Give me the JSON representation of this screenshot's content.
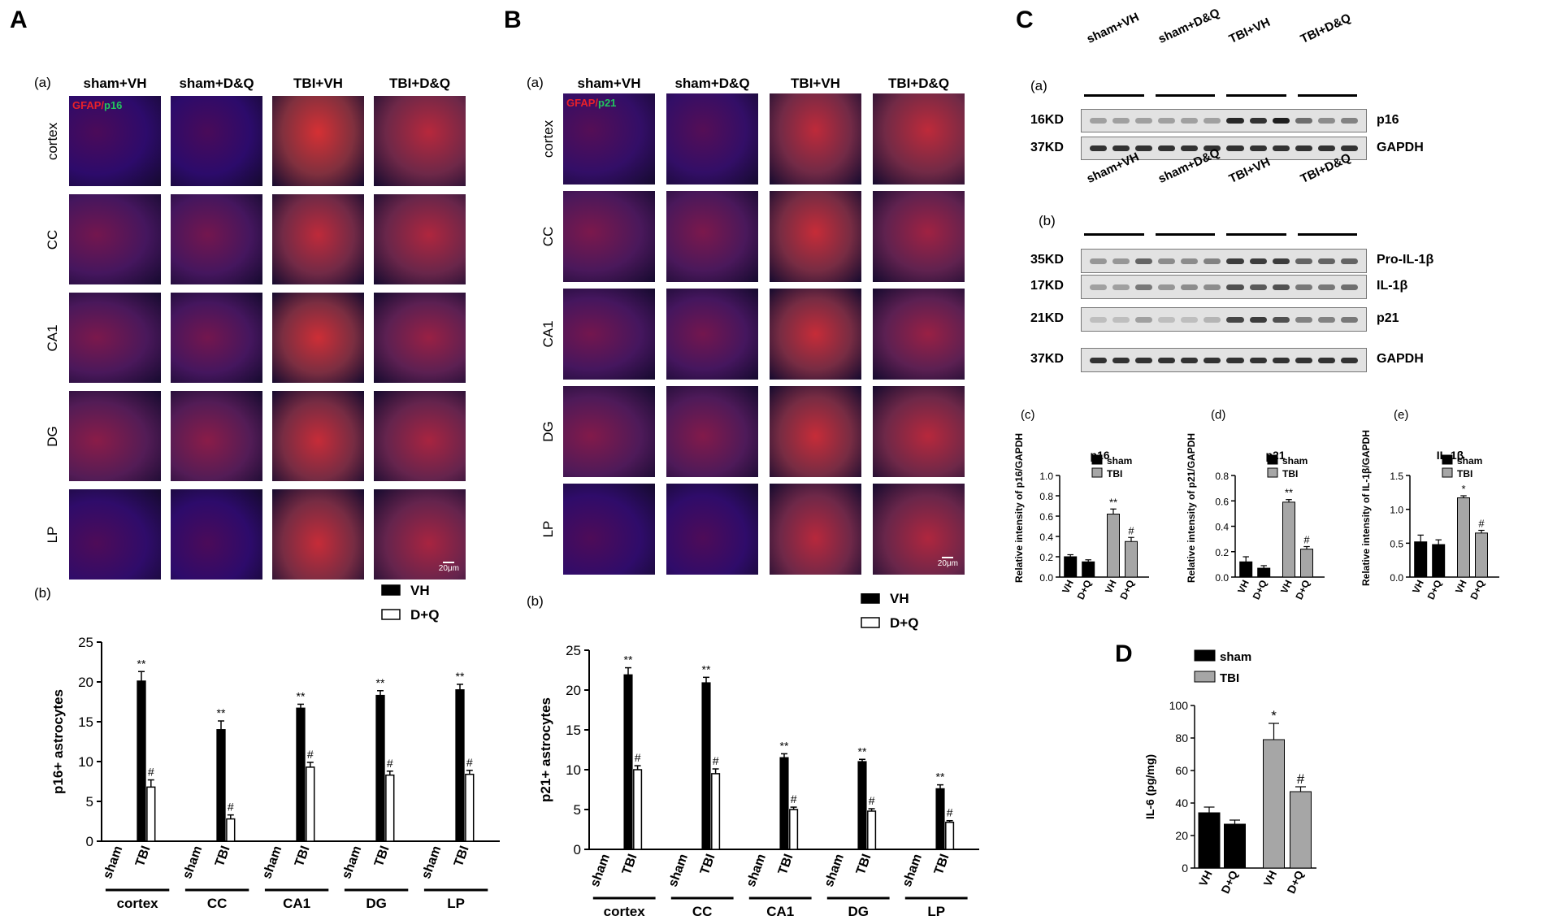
{
  "panelA": {
    "letter": "A",
    "sub_a": "(a)",
    "sub_b": "(b)",
    "col_headers": [
      "sham+VH",
      "sham+D&Q",
      "TBI+VH",
      "TBI+D&Q"
    ],
    "row_labels": [
      "cortex",
      "CC",
      "CA1",
      "DG",
      "LP"
    ],
    "stain_red": "GFAP/",
    "stain_green": "p16",
    "scale_bar": "20μm",
    "intensity": [
      [
        0.03,
        0.02,
        0.95,
        0.75
      ],
      [
        0.3,
        0.3,
        0.8,
        0.7
      ],
      [
        0.35,
        0.3,
        0.9,
        0.55
      ],
      [
        0.45,
        0.45,
        0.85,
        0.65
      ],
      [
        0.05,
        0.03,
        0.85,
        0.65
      ]
    ]
  },
  "panelB": {
    "letter": "B",
    "sub_a": "(a)",
    "sub_b": "(b)",
    "col_headers": [
      "sham+VH",
      "sham+D&Q",
      "TBI+VH",
      "TBI+D&Q"
    ],
    "row_labels": [
      "cortex",
      "CC",
      "CA1",
      "DG",
      "LP"
    ],
    "stain_red": "GFAP/",
    "stain_green": "p21",
    "scale_bar": "20μm",
    "intensity": [
      [
        0.1,
        0.1,
        0.8,
        0.8
      ],
      [
        0.35,
        0.35,
        0.85,
        0.6
      ],
      [
        0.3,
        0.3,
        0.85,
        0.55
      ],
      [
        0.4,
        0.4,
        0.85,
        0.75
      ],
      [
        0.05,
        0.05,
        0.75,
        0.7
      ]
    ]
  },
  "panelC": {
    "letter": "C",
    "sub_a": "(a)",
    "sub_b": "(b)",
    "groups": [
      "sham+VH",
      "sham+D&Q",
      "TBI+VH",
      "TBI+D&Q"
    ],
    "blot_a": [
      {
        "kd": "16KD",
        "label": "p16",
        "levels": [
          0.3,
          0.3,
          0.3,
          0.3,
          0.3,
          0.3,
          0.9,
          0.85,
          0.95,
          0.55,
          0.4,
          0.45
        ]
      },
      {
        "kd": "37KD",
        "label": "GAPDH",
        "levels": [
          0.85,
          0.85,
          0.85,
          0.85,
          0.85,
          0.85,
          0.85,
          0.85,
          0.85,
          0.85,
          0.85,
          0.85
        ]
      }
    ],
    "blot_b": [
      {
        "kd": "35KD",
        "label": "Pro-IL-1β",
        "levels": [
          0.35,
          0.35,
          0.6,
          0.4,
          0.4,
          0.45,
          0.8,
          0.8,
          0.8,
          0.6,
          0.6,
          0.6
        ]
      },
      {
        "kd": "17KD",
        "label": "IL-1β",
        "levels": [
          0.3,
          0.3,
          0.5,
          0.35,
          0.4,
          0.4,
          0.7,
          0.65,
          0.7,
          0.5,
          0.5,
          0.55
        ]
      },
      {
        "kd": "21KD",
        "label": "p21",
        "levels": [
          0.15,
          0.15,
          0.3,
          0.15,
          0.15,
          0.2,
          0.75,
          0.8,
          0.7,
          0.45,
          0.45,
          0.5
        ]
      },
      {
        "kd": "37KD",
        "label": "GAPDH",
        "levels": [
          0.85,
          0.85,
          0.85,
          0.85,
          0.85,
          0.85,
          0.85,
          0.85,
          0.85,
          0.85,
          0.85,
          0.85
        ]
      }
    ]
  },
  "panelD": {
    "letter": "D"
  },
  "colors": {
    "sham": "#000000",
    "tbi": "#a6a6a6",
    "vh": "#000000",
    "dq": "#ffffff",
    "gfap": "#e8202a",
    "marker": "#22c55e"
  },
  "chart_data": [
    {
      "id": "A_b",
      "type": "bar",
      "sub_label": "(b)",
      "ylabel": "p16+ astrocytes",
      "ylim": [
        0,
        25
      ],
      "yticks": [
        0,
        5,
        10,
        15,
        20,
        25
      ],
      "regions": [
        "cortex",
        "CC",
        "CA1",
        "DG",
        "LP"
      ],
      "x_labels": [
        "sham",
        "TBI"
      ],
      "legend": [
        "VH",
        "D+Q"
      ],
      "legend_position": "top-right",
      "series": [
        {
          "name": "VH",
          "values": [
            20.1,
            14.0,
            16.7,
            18.3,
            19.0
          ],
          "err": [
            1.2,
            1.1,
            0.5,
            0.6,
            0.7
          ],
          "sig": "**"
        },
        {
          "name": "D+Q",
          "values": [
            6.8,
            2.8,
            9.3,
            8.3,
            8.4
          ],
          "err": [
            0.9,
            0.5,
            0.6,
            0.5,
            0.5
          ],
          "sig": "#"
        }
      ]
    },
    {
      "id": "B_b",
      "type": "bar",
      "sub_label": "(b)",
      "ylabel": "p21+ astrocytes",
      "ylim": [
        0,
        25
      ],
      "yticks": [
        0,
        5,
        10,
        15,
        20,
        25
      ],
      "regions": [
        "cortex",
        "CC",
        "CA1",
        "DG",
        "LP"
      ],
      "x_labels": [
        "sham",
        "TBI"
      ],
      "legend": [
        "VH",
        "D+Q"
      ],
      "legend_position": "top-right",
      "series": [
        {
          "name": "VH",
          "values": [
            21.9,
            20.9,
            11.5,
            11.0,
            7.6
          ],
          "err": [
            0.9,
            0.7,
            0.5,
            0.3,
            0.5
          ],
          "sig": "**"
        },
        {
          "name": "D+Q",
          "values": [
            10.0,
            9.5,
            5.0,
            4.8,
            3.4
          ],
          "err": [
            0.5,
            0.6,
            0.3,
            0.3,
            0.2
          ],
          "sig": "#"
        }
      ]
    },
    {
      "id": "C_c",
      "type": "bar",
      "sub_label": "(c)",
      "title": "p16",
      "ylabel": "Relative intensity of p16/GAPDH",
      "ylim": [
        0,
        1.0
      ],
      "yticks": [
        0.0,
        0.2,
        0.4,
        0.6,
        0.8,
        1.0
      ],
      "categories": [
        "VH",
        "D+Q",
        "VH",
        "D+Q"
      ],
      "groups": [
        "sham",
        "sham",
        "TBI",
        "TBI"
      ],
      "values": [
        0.2,
        0.15,
        0.62,
        0.35
      ],
      "err": [
        0.02,
        0.02,
        0.05,
        0.04
      ],
      "sig": [
        "",
        "",
        "**",
        "#"
      ],
      "legend": [
        "sham",
        "TBI"
      ],
      "legend_position": "top-right"
    },
    {
      "id": "C_d",
      "type": "bar",
      "sub_label": "(d)",
      "title": "p21",
      "ylabel": "Relative intensity of p21/GAPDH",
      "ylim": [
        0,
        0.8
      ],
      "yticks": [
        0.0,
        0.2,
        0.4,
        0.6,
        0.8
      ],
      "categories": [
        "VH",
        "D+Q",
        "VH",
        "D+Q"
      ],
      "groups": [
        "sham",
        "sham",
        "TBI",
        "TBI"
      ],
      "values": [
        0.12,
        0.07,
        0.59,
        0.22
      ],
      "err": [
        0.04,
        0.02,
        0.02,
        0.02
      ],
      "sig": [
        "",
        "",
        "**",
        "#"
      ],
      "legend": [
        "sham",
        "TBI"
      ],
      "legend_position": "top-right"
    },
    {
      "id": "C_e",
      "type": "bar",
      "sub_label": "(e)",
      "title": "IL-1β",
      "ylabel": "Relative intensity of IL-1β/GAPDH",
      "ylim": [
        0,
        1.5
      ],
      "yticks": [
        0.0,
        0.5,
        1.0,
        1.5
      ],
      "categories": [
        "VH",
        "D+Q",
        "VH",
        "D+Q"
      ],
      "groups": [
        "sham",
        "sham",
        "TBI",
        "TBI"
      ],
      "values": [
        0.52,
        0.48,
        1.17,
        0.65
      ],
      "err": [
        0.1,
        0.07,
        0.03,
        0.04
      ],
      "sig": [
        "",
        "",
        "*",
        "#"
      ],
      "legend": [
        "sham",
        "TBI"
      ],
      "legend_position": "top-right"
    },
    {
      "id": "D",
      "type": "bar",
      "ylabel": "IL-6 (pg/mg)",
      "ylim": [
        0,
        100
      ],
      "yticks": [
        0,
        20,
        40,
        60,
        80,
        100
      ],
      "categories": [
        "VH",
        "D+Q",
        "VH",
        "D+Q"
      ],
      "groups": [
        "sham",
        "sham",
        "TBI",
        "TBI"
      ],
      "values": [
        34,
        27,
        79,
        47
      ],
      "err": [
        3.5,
        2.5,
        10,
        3
      ],
      "sig": [
        "",
        "",
        "*",
        "#"
      ],
      "legend": [
        "sham",
        "TBI"
      ],
      "legend_position": "top-left"
    }
  ]
}
